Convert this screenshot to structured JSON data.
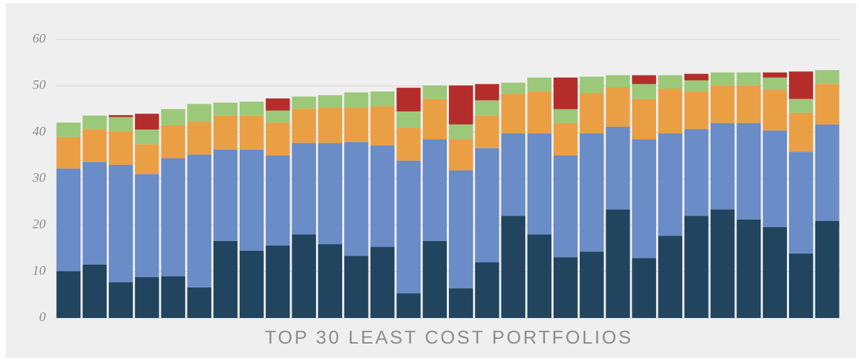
{
  "chart_data": {
    "type": "stacked_bar",
    "x_label": "TOP 30 LEAST COST PORTFOLIOS",
    "categories": [
      null,
      null,
      null,
      null,
      null,
      null,
      null,
      null,
      null,
      null,
      null,
      null,
      null,
      null,
      null,
      null,
      null,
      null,
      null,
      null,
      null,
      null,
      null,
      null,
      null,
      null,
      null,
      null,
      null,
      null
    ],
    "series": [
      {
        "color": "#21455e",
        "values": [
          10.1,
          11.5,
          7.7,
          8.8,
          9.0,
          6.6,
          16.6,
          14.5,
          15.6,
          18.0,
          15.9,
          13.4,
          15.3,
          5.3,
          16.6,
          6.4,
          12.0,
          22.0,
          18.0,
          13.1,
          14.3,
          23.4,
          12.9,
          17.7,
          22.0,
          23.4,
          21.2,
          19.6,
          13.9,
          20.9
        ]
      },
      {
        "color": "#6a8cc7",
        "values": [
          22.1,
          22.1,
          25.3,
          22.2,
          25.4,
          28.6,
          19.7,
          21.8,
          19.4,
          19.7,
          21.8,
          24.5,
          21.9,
          28.6,
          21.9,
          25.4,
          24.6,
          17.8,
          21.8,
          21.9,
          25.5,
          17.8,
          25.6,
          22.1,
          18.7,
          18.6,
          20.8,
          20.8,
          21.9,
          20.8
        ]
      },
      {
        "color": "#eb9f45",
        "values": [
          6.8,
          7.1,
          7.2,
          6.4,
          7.1,
          7.1,
          7.3,
          7.3,
          7.1,
          7.4,
          7.6,
          7.4,
          8.4,
          7.1,
          8.7,
          6.7,
          7.0,
          8.5,
          9.0,
          7.0,
          8.7,
          8.5,
          8.7,
          9.6,
          8.1,
          8.1,
          8.1,
          8.7,
          8.4,
          8.7
        ]
      },
      {
        "color": "#9cc87a",
        "values": [
          3.1,
          2.9,
          3.1,
          3.2,
          3.5,
          3.8,
          2.8,
          3.0,
          2.6,
          2.6,
          2.7,
          3.3,
          3.2,
          3.5,
          2.9,
          3.2,
          3.3,
          2.4,
          3.0,
          3.0,
          3.5,
          2.6,
          3.2,
          2.9,
          2.4,
          2.8,
          2.8,
          2.7,
          3.0,
          3.0
        ]
      },
      {
        "color": "#b42d2a",
        "values": [
          0,
          0,
          0.4,
          3.4,
          0,
          0,
          0,
          0,
          2.6,
          0,
          0,
          0,
          0,
          5.1,
          0,
          8.4,
          3.5,
          0,
          0,
          6.8,
          0,
          0,
          1.9,
          0,
          1.4,
          0,
          0,
          1.1,
          5.9,
          0
        ]
      }
    ],
    "ylim": [
      0,
      60
    ],
    "yticks": [
      0,
      10,
      20,
      30,
      40,
      50,
      60
    ],
    "grid": true
  }
}
